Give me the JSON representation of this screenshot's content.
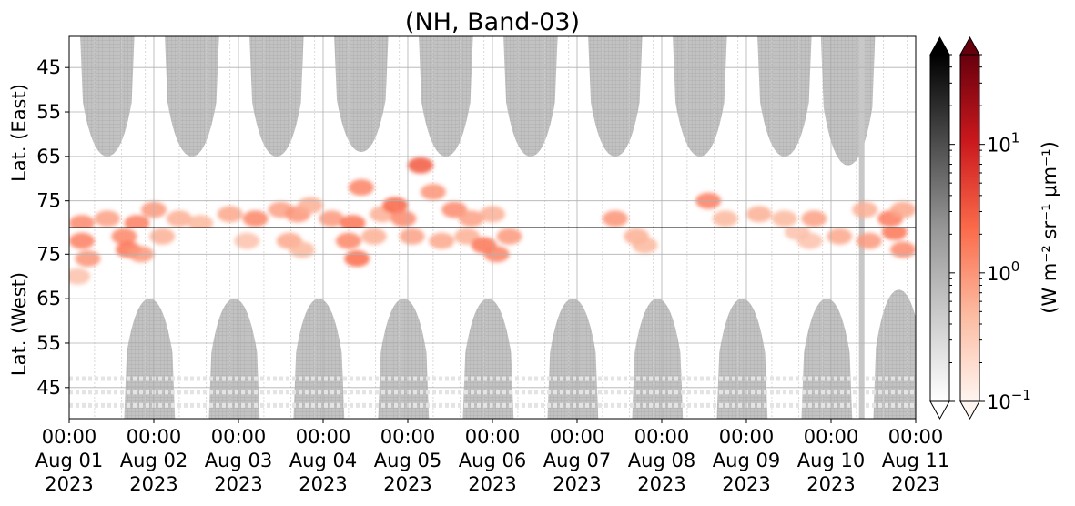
{
  "chart_data": {
    "type": "heatmap",
    "title": "(NH, Band-03)",
    "panels": [
      {
        "name": "east",
        "ylabel": "Lat. (East)",
        "yticks": [
          45,
          55,
          65,
          75
        ],
        "ylim": [
          38,
          81
        ],
        "direction": "downward"
      },
      {
        "name": "west",
        "ylabel": "Lat. (West)",
        "yticks": [
          75,
          65,
          55,
          45
        ],
        "ylim": [
          81,
          38
        ],
        "direction": "upward"
      }
    ],
    "x_range": [
      "2023-08-01 00:00",
      "2023-08-11 00:00"
    ],
    "xticks": [
      {
        "time": "00:00",
        "date": "Aug 01",
        "year": "2023"
      },
      {
        "time": "00:00",
        "date": "Aug 02",
        "year": "2023"
      },
      {
        "time": "00:00",
        "date": "Aug 03",
        "year": "2023"
      },
      {
        "time": "00:00",
        "date": "Aug 04",
        "year": "2023"
      },
      {
        "time": "00:00",
        "date": "Aug 05",
        "year": "2023"
      },
      {
        "time": "00:00",
        "date": "Aug 06",
        "year": "2023"
      },
      {
        "time": "00:00",
        "date": "Aug 07",
        "year": "2023"
      },
      {
        "time": "00:00",
        "date": "Aug 08",
        "year": "2023"
      },
      {
        "time": "00:00",
        "date": "Aug 09",
        "year": "2023"
      },
      {
        "time": "00:00",
        "date": "Aug 10",
        "year": "2023"
      },
      {
        "time": "00:00",
        "date": "Aug 11",
        "year": "2023"
      }
    ],
    "grid": true,
    "colorbars": [
      {
        "name": "gray",
        "cmap": "Greys",
        "extend": "both"
      },
      {
        "name": "red",
        "cmap": "Reds",
        "extend": "both",
        "scale": "log",
        "ticks": [
          {
            "base": "10",
            "exp": "1"
          },
          {
            "base": "10",
            "exp": "0"
          },
          {
            "base": "10",
            "exp": "−1"
          }
        ]
      }
    ],
    "colorbar_label": "(W m⁻² sr⁻¹ μm⁻¹)",
    "colorbar_range": [
      0.1,
      50
    ],
    "daylight_gray": {
      "east": [
        {
          "center_day": 0.45,
          "half_width_day": 0.32,
          "lat_edge": 65
        },
        {
          "center_day": 1.45,
          "half_width_day": 0.32,
          "lat_edge": 65
        },
        {
          "center_day": 2.45,
          "half_width_day": 0.32,
          "lat_edge": 65
        },
        {
          "center_day": 3.45,
          "half_width_day": 0.32,
          "lat_edge": 64
        },
        {
          "center_day": 4.45,
          "half_width_day": 0.32,
          "lat_edge": 65
        },
        {
          "center_day": 5.45,
          "half_width_day": 0.32,
          "lat_edge": 65
        },
        {
          "center_day": 6.45,
          "half_width_day": 0.32,
          "lat_edge": 65
        },
        {
          "center_day": 7.45,
          "half_width_day": 0.32,
          "lat_edge": 65
        },
        {
          "center_day": 8.45,
          "half_width_day": 0.32,
          "lat_edge": 65
        },
        {
          "center_day": 9.2,
          "half_width_day": 0.32,
          "lat_edge": 67
        }
      ],
      "west": [
        {
          "center_day": 0.95,
          "half_width_day": 0.3,
          "lat_edge": 65
        },
        {
          "center_day": 1.95,
          "half_width_day": 0.3,
          "lat_edge": 65
        },
        {
          "center_day": 2.95,
          "half_width_day": 0.3,
          "lat_edge": 65
        },
        {
          "center_day": 3.95,
          "half_width_day": 0.3,
          "lat_edge": 65
        },
        {
          "center_day": 4.95,
          "half_width_day": 0.3,
          "lat_edge": 65
        },
        {
          "center_day": 5.95,
          "half_width_day": 0.3,
          "lat_edge": 65
        },
        {
          "center_day": 6.95,
          "half_width_day": 0.3,
          "lat_edge": 65
        },
        {
          "center_day": 7.95,
          "half_width_day": 0.3,
          "lat_edge": 65
        },
        {
          "center_day": 8.95,
          "half_width_day": 0.3,
          "lat_edge": 65
        },
        {
          "center_day": 9.8,
          "half_width_day": 0.3,
          "lat_edge": 67
        }
      ]
    },
    "red_patches": [
      {
        "panel": "east",
        "day": 0.15,
        "lat": 80,
        "value": 1.2
      },
      {
        "panel": "east",
        "day": 0.45,
        "lat": 79,
        "value": 0.8
      },
      {
        "panel": "east",
        "day": 0.8,
        "lat": 80,
        "value": 1.5
      },
      {
        "panel": "east",
        "day": 1.0,
        "lat": 77,
        "value": 0.9
      },
      {
        "panel": "east",
        "day": 1.3,
        "lat": 79,
        "value": 0.6
      },
      {
        "panel": "east",
        "day": 1.55,
        "lat": 80,
        "value": 0.5
      },
      {
        "panel": "east",
        "day": 1.9,
        "lat": 78,
        "value": 0.7
      },
      {
        "panel": "east",
        "day": 2.2,
        "lat": 79,
        "value": 1.3
      },
      {
        "panel": "east",
        "day": 2.5,
        "lat": 77,
        "value": 0.8
      },
      {
        "panel": "east",
        "day": 2.7,
        "lat": 78,
        "value": 1.0
      },
      {
        "panel": "east",
        "day": 2.85,
        "lat": 76,
        "value": 0.6
      },
      {
        "panel": "east",
        "day": 3.1,
        "lat": 79,
        "value": 0.9
      },
      {
        "panel": "east",
        "day": 3.35,
        "lat": 80,
        "value": 1.8
      },
      {
        "panel": "east",
        "day": 3.45,
        "lat": 72,
        "value": 1.4
      },
      {
        "panel": "east",
        "day": 3.7,
        "lat": 78,
        "value": 0.6
      },
      {
        "panel": "east",
        "day": 3.85,
        "lat": 76,
        "value": 2.5
      },
      {
        "panel": "east",
        "day": 3.95,
        "lat": 79,
        "value": 1.2
      },
      {
        "panel": "east",
        "day": 4.15,
        "lat": 67,
        "value": 3.0
      },
      {
        "panel": "east",
        "day": 4.3,
        "lat": 73,
        "value": 1.0
      },
      {
        "panel": "east",
        "day": 4.55,
        "lat": 77,
        "value": 1.2
      },
      {
        "panel": "east",
        "day": 4.75,
        "lat": 79,
        "value": 0.8
      },
      {
        "panel": "east",
        "day": 5.0,
        "lat": 78,
        "value": 0.6
      },
      {
        "panel": "east",
        "day": 6.45,
        "lat": 79,
        "value": 1.0
      },
      {
        "panel": "east",
        "day": 7.55,
        "lat": 75,
        "value": 1.5
      },
      {
        "panel": "east",
        "day": 7.75,
        "lat": 79,
        "value": 0.5
      },
      {
        "panel": "east",
        "day": 8.15,
        "lat": 78,
        "value": 0.6
      },
      {
        "panel": "east",
        "day": 8.45,
        "lat": 79,
        "value": 0.5
      },
      {
        "panel": "east",
        "day": 8.8,
        "lat": 79,
        "value": 0.8
      },
      {
        "panel": "east",
        "day": 9.4,
        "lat": 77,
        "value": 0.6
      },
      {
        "panel": "east",
        "day": 9.7,
        "lat": 79,
        "value": 1.6
      },
      {
        "panel": "east",
        "day": 9.85,
        "lat": 77,
        "value": 0.7
      },
      {
        "panel": "west",
        "day": 0.15,
        "lat": 78,
        "value": 1.5
      },
      {
        "panel": "west",
        "day": 0.22,
        "lat": 74,
        "value": 1.0
      },
      {
        "panel": "west",
        "day": 0.1,
        "lat": 70,
        "value": 0.4
      },
      {
        "panel": "west",
        "day": 0.65,
        "lat": 79,
        "value": 1.3
      },
      {
        "panel": "west",
        "day": 0.7,
        "lat": 76,
        "value": 1.8
      },
      {
        "panel": "west",
        "day": 0.85,
        "lat": 75,
        "value": 0.9
      },
      {
        "panel": "west",
        "day": 1.1,
        "lat": 79,
        "value": 0.6
      },
      {
        "panel": "west",
        "day": 2.1,
        "lat": 78,
        "value": 0.4
      },
      {
        "panel": "west",
        "day": 2.6,
        "lat": 78,
        "value": 0.7
      },
      {
        "panel": "west",
        "day": 2.75,
        "lat": 76,
        "value": 0.5
      },
      {
        "panel": "west",
        "day": 3.3,
        "lat": 78,
        "value": 1.3
      },
      {
        "panel": "west",
        "day": 3.4,
        "lat": 74,
        "value": 2.2
      },
      {
        "panel": "west",
        "day": 3.6,
        "lat": 79,
        "value": 0.6
      },
      {
        "panel": "west",
        "day": 4.05,
        "lat": 79,
        "value": 0.8
      },
      {
        "panel": "west",
        "day": 4.4,
        "lat": 78,
        "value": 0.7
      },
      {
        "panel": "west",
        "day": 4.7,
        "lat": 79,
        "value": 0.6
      },
      {
        "panel": "west",
        "day": 4.9,
        "lat": 77,
        "value": 1.8
      },
      {
        "panel": "west",
        "day": 5.05,
        "lat": 75,
        "value": 1.4
      },
      {
        "panel": "west",
        "day": 5.2,
        "lat": 79,
        "value": 0.9
      },
      {
        "panel": "west",
        "day": 6.7,
        "lat": 79,
        "value": 0.6
      },
      {
        "panel": "west",
        "day": 6.8,
        "lat": 77,
        "value": 0.5
      },
      {
        "panel": "west",
        "day": 8.6,
        "lat": 80,
        "value": 0.4
      },
      {
        "panel": "west",
        "day": 8.75,
        "lat": 78,
        "value": 0.4
      },
      {
        "panel": "west",
        "day": 9.1,
        "lat": 79,
        "value": 0.7
      },
      {
        "panel": "west",
        "day": 9.45,
        "lat": 78,
        "value": 0.9
      },
      {
        "panel": "west",
        "day": 9.75,
        "lat": 80,
        "value": 1.8
      },
      {
        "panel": "west",
        "day": 9.85,
        "lat": 76,
        "value": 1.2
      }
    ]
  }
}
